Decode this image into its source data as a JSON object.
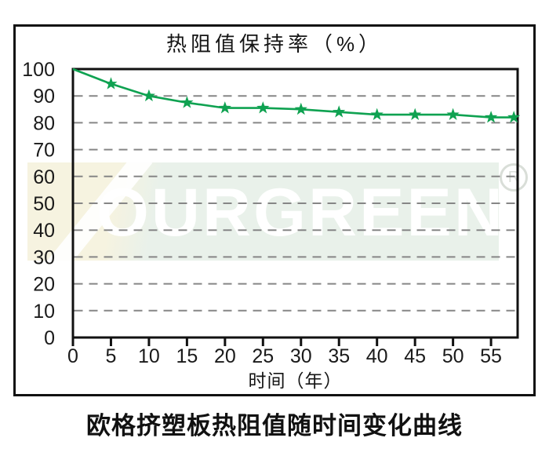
{
  "chart_data": {
    "type": "line",
    "title": "热阻值保持率（%）",
    "xlabel": "时间（年）",
    "x": [
      0,
      5,
      10,
      15,
      20,
      25,
      30,
      35,
      40,
      45,
      50,
      55,
      58
    ],
    "values": [
      100,
      94.5,
      90,
      87.5,
      85.5,
      85.5,
      85,
      84,
      83,
      83,
      83,
      82,
      82
    ],
    "marker": "star",
    "marker_start_index": 1,
    "x_ticks": [
      0,
      5,
      10,
      15,
      20,
      25,
      30,
      35,
      40,
      45,
      50,
      55
    ],
    "y_ticks": [
      0,
      10,
      20,
      30,
      40,
      50,
      60,
      70,
      80,
      90,
      100
    ],
    "xlim": [
      0,
      58.5
    ],
    "ylim": [
      0,
      100
    ],
    "grid": "dashed-horizontal",
    "legend": "none",
    "line_color": "#0fa251",
    "grid_color": "#868686",
    "axis_color": "#111111",
    "tick_label_color": "#1a1a1a"
  },
  "caption": "欧格挤塑板热阻值随时间变化曲线",
  "watermark": {
    "text": "OURGREEN",
    "registered": "R",
    "band_green": "#e9f1ea",
    "band_yellow": "#f6f3e0"
  }
}
